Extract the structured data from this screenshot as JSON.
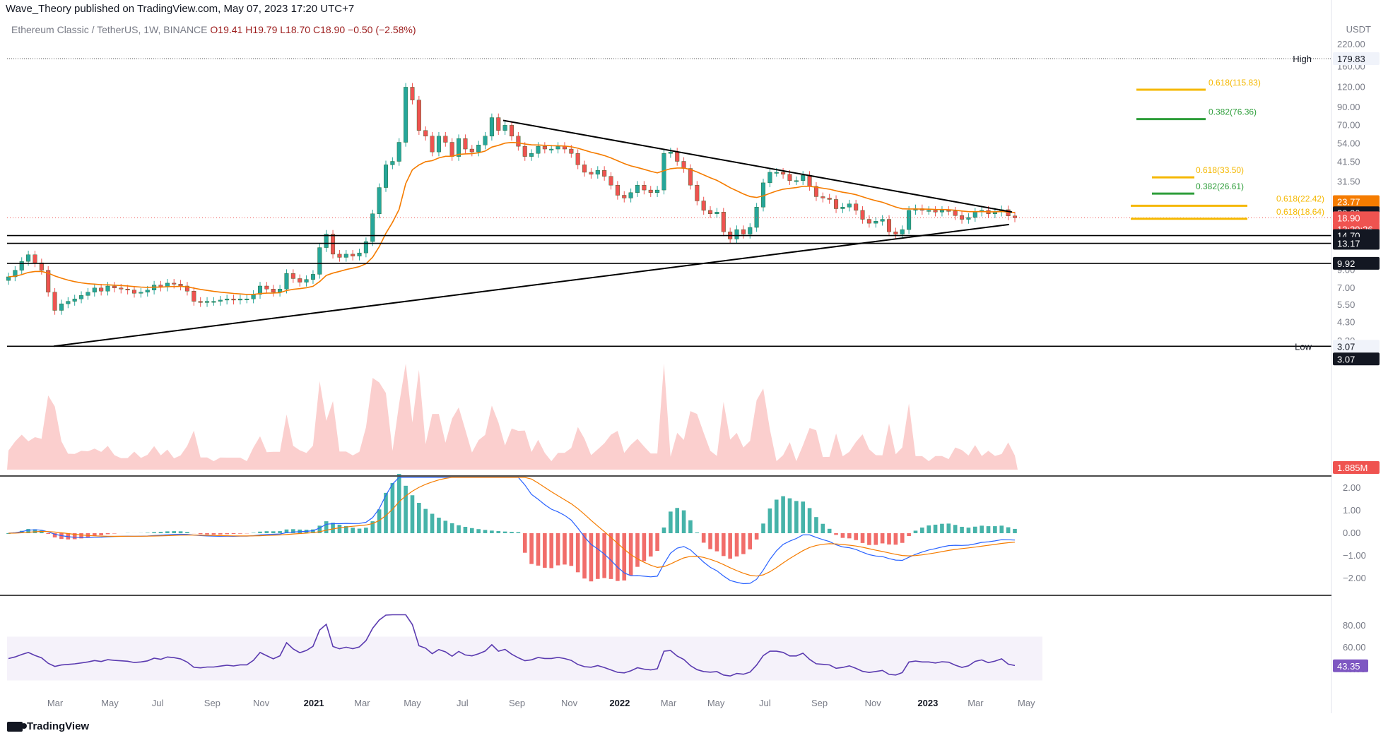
{
  "attribution": "Wave_Theory published on TradingView.com, May 07, 2023 17:20 UTC+7",
  "symbol": {
    "name": "Ethereum Classic / TetherUS, 1W, BINANCE",
    "open": "O19.41",
    "high": "H19.79",
    "low": "L18.70",
    "close": "C18.90",
    "change": "−0.50 (−2.58%)"
  },
  "currency": "USDT",
  "footer": "TradingView",
  "colors": {
    "up": "#26a69a",
    "down": "#ef5350",
    "ema": "#f57c00",
    "fib_orange": "#f5b800",
    "fib_green": "#2e9e3a",
    "rsi": "#5b3bb0",
    "macd": "#2962ff"
  },
  "chart_data": {
    "type": "candlestick",
    "price_scale": "log",
    "y_ticks": [
      "220.00",
      "160.00",
      "120.00",
      "90.00",
      "70.00",
      "54.00",
      "41.50",
      "31.50",
      "9.00",
      "7.00",
      "5.50",
      "4.30",
      "3.30"
    ],
    "x_ticks": [
      "Mar",
      "May",
      "Jul",
      "Sep",
      "Nov",
      "2021",
      "Mar",
      "May",
      "Jul",
      "Sep",
      "Nov",
      "2022",
      "Mar",
      "May",
      "Jul",
      "Sep",
      "Nov",
      "2023",
      "Mar",
      "May"
    ],
    "price_labels": [
      {
        "label": "High",
        "value": "179.83"
      },
      {
        "label": "",
        "value": "23.77"
      },
      {
        "label": "",
        "value": "20.30"
      },
      {
        "label": "",
        "value": "18.90"
      },
      {
        "label": "",
        "value": "13:39:26"
      },
      {
        "label": "",
        "value": "14.70"
      },
      {
        "label": "",
        "value": "13.17"
      },
      {
        "label": "",
        "value": "9.92"
      },
      {
        "label": "Low",
        "value": "3.07"
      },
      {
        "label": "",
        "value": "3.07"
      },
      {
        "label": "",
        "value": "1.885M"
      }
    ],
    "fib_labels": [
      {
        "text": "0.618(115.83)",
        "value": 115.83,
        "color": "#f5b800"
      },
      {
        "text": "0.382(76.36)",
        "value": 76.36,
        "color": "#2e9e3a"
      },
      {
        "text": "0.618(33.50)",
        "value": 33.5,
        "color": "#f5b800"
      },
      {
        "text": "0.382(26.61)",
        "value": 26.61,
        "color": "#2e9e3a"
      },
      {
        "text": "0.618(22.42)",
        "value": 22.42,
        "color": "#f5b800"
      },
      {
        "text": "0.618(18.64)",
        "value": 18.64,
        "color": "#f5b800"
      }
    ],
    "horizontal_levels": [
      14.7,
      13.17,
      9.92,
      3.07
    ],
    "closes": [
      8.2,
      9.0,
      10.2,
      11.2,
      10.0,
      9.0,
      6.6,
      5.1,
      5.6,
      5.8,
      6.0,
      6.3,
      6.6,
      7.0,
      6.7,
      7.2,
      7.0,
      6.9,
      6.8,
      6.5,
      6.6,
      6.8,
      7.3,
      7.1,
      7.5,
      7.4,
      7.2,
      6.7,
      5.8,
      5.7,
      5.8,
      5.8,
      5.9,
      6.0,
      5.9,
      6.0,
      6.0,
      6.4,
      7.2,
      6.9,
      6.6,
      6.9,
      8.6,
      8.0,
      7.6,
      7.9,
      8.5,
      12.4,
      15.0,
      11.3,
      10.8,
      11.3,
      11.0,
      11.5,
      13.5,
      20.0,
      29.0,
      40.0,
      42.0,
      55.0,
      120.0,
      100.0,
      65.0,
      60.0,
      48.0,
      60.0,
      55.0,
      45.0,
      58.0,
      50.0,
      48.0,
      53.0,
      60.0,
      78.0,
      65.0,
      70.0,
      60.0,
      52.0,
      45.0,
      47.0,
      52.0,
      50.0,
      50.0,
      52.0,
      50.0,
      47.0,
      40.0,
      36.0,
      35.0,
      37.0,
      34.0,
      30.0,
      26.0,
      25.0,
      27.0,
      30.0,
      28.0,
      27.0,
      28.0,
      47.0,
      48.0,
      42.0,
      38.0,
      30.0,
      24.0,
      21.0,
      20.0,
      20.5,
      15.5,
      14.0,
      16.0,
      15.0,
      16.5,
      22.0,
      31.0,
      36.0,
      36.0,
      35.0,
      32.0,
      32.0,
      34.5,
      29.5,
      25.5,
      25.0,
      24.5,
      21.5,
      22.0,
      23.0,
      21.0,
      18.5,
      17.5,
      18.0,
      18.5,
      15.5,
      15.0,
      16.0,
      21.0,
      21.5,
      21.0,
      21.0,
      20.5,
      21.0,
      20.8,
      19.5,
      18.5,
      19.0,
      20.5,
      21.0,
      20.0,
      20.5,
      21.2,
      19.41,
      18.9
    ],
    "series": [
      {
        "name": "EMA",
        "values": "trailing moving average of closes"
      }
    ],
    "rsi_ticks": [
      "80.00",
      "60.00",
      "40.00"
    ],
    "rsi_value": "43.35",
    "macd_ticks": [
      "2.00",
      "1.00",
      "0.00",
      "−1.00",
      "−2.00"
    ]
  }
}
